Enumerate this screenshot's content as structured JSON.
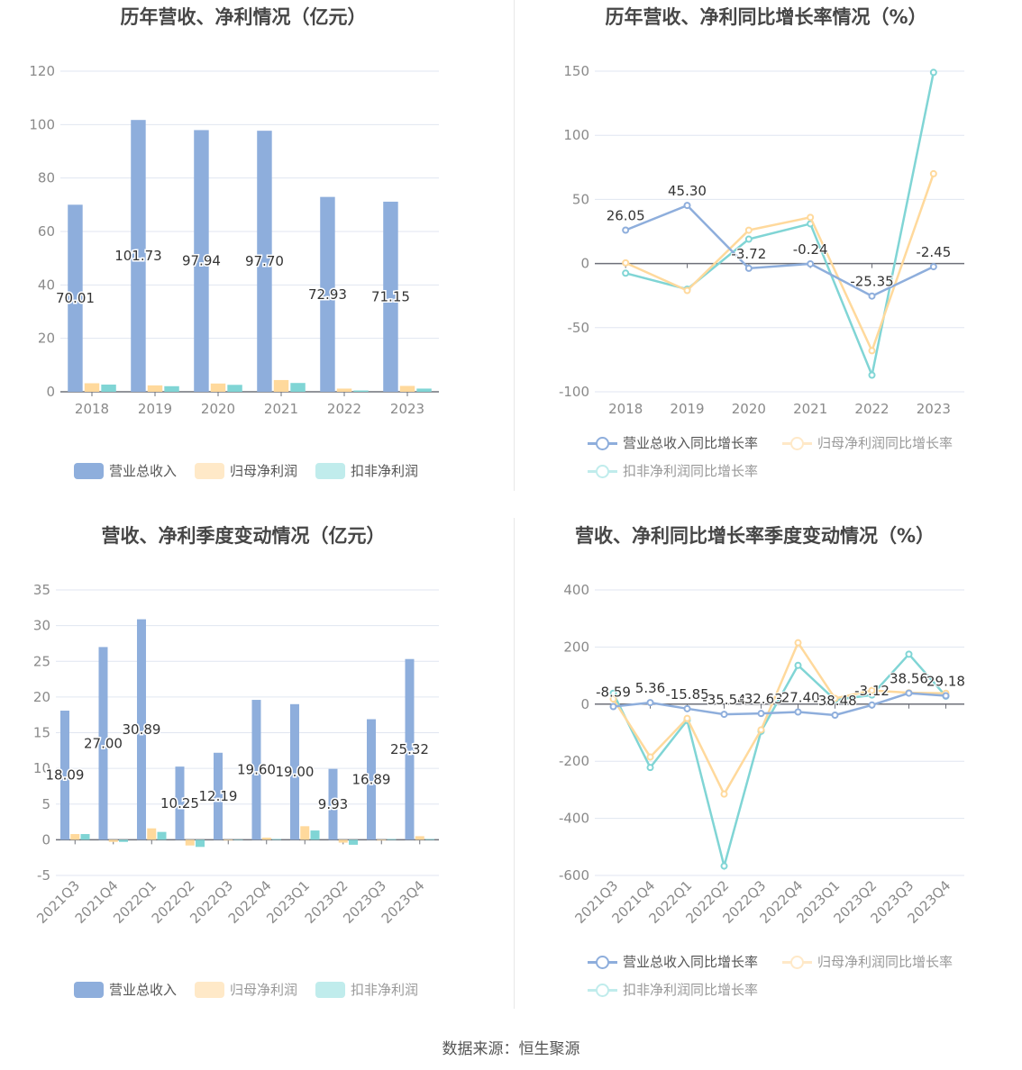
{
  "colors": {
    "revenue": "#8eaedc",
    "parent_profit": "#ffd99c",
    "deducted_profit": "#80d5d5",
    "axis": "#6e7079",
    "grid": "#e0e6f1"
  },
  "footer": {
    "source": "数据来源：恒生聚源"
  },
  "chart_data": [
    {
      "type": "bar",
      "title": "历年营收、净利情况（亿元）",
      "categories": [
        "2018",
        "2019",
        "2020",
        "2021",
        "2022",
        "2023"
      ],
      "ylim": [
        0,
        120
      ],
      "yticks": [
        "0",
        "20",
        "40",
        "60",
        "80",
        "100",
        "120"
      ],
      "grid": true,
      "legend": "bottom",
      "series": [
        {
          "name": "营业总收入",
          "color": "#8eaedc",
          "values": [
            70.01,
            101.73,
            97.94,
            97.7,
            72.93,
            71.15
          ],
          "labels": [
            "70.01",
            "101.73",
            "97.94",
            "97.70",
            "72.93",
            "71.15"
          ]
        },
        {
          "name": "归母净利润",
          "color": "#ffd99c",
          "values": [
            3.2,
            2.4,
            3.1,
            4.4,
            1.2,
            2.2
          ]
        },
        {
          "name": "扣非净利润",
          "color": "#80d5d5",
          "values": [
            2.7,
            2.1,
            2.6,
            3.3,
            0.5,
            1.2
          ]
        }
      ]
    },
    {
      "type": "line",
      "title": "历年营收、净利同比增长率情况（%）",
      "categories": [
        "2018",
        "2019",
        "2020",
        "2021",
        "2022",
        "2023"
      ],
      "ylim": [
        -100,
        150
      ],
      "yticks": [
        "-100",
        "-50",
        "0",
        "50",
        "100",
        "150"
      ],
      "grid": true,
      "legend": "bottom",
      "series": [
        {
          "name": "营业总收入同比增长率",
          "color": "#8eaedc",
          "values": [
            26.05,
            45.3,
            -3.72,
            -0.24,
            -25.35,
            -2.45
          ],
          "labels": [
            "26.05",
            "45.30",
            "-3.72",
            "-0.24",
            "-25.35",
            "-2.45"
          ]
        },
        {
          "name": "归母净利润同比增长率",
          "color": "#ffd99c",
          "values": [
            0.5,
            -21,
            26,
            36,
            -68,
            70
          ]
        },
        {
          "name": "扣非净利润同比增长率",
          "color": "#80d5d5",
          "values": [
            -7.5,
            -20,
            19,
            31,
            -87,
            149
          ]
        }
      ]
    },
    {
      "type": "bar",
      "title": "营收、净利季度变动情况（亿元）",
      "categories": [
        "2021Q3",
        "2021Q4",
        "2022Q1",
        "2022Q2",
        "2022Q3",
        "2022Q4",
        "2023Q1",
        "2023Q2",
        "2023Q3",
        "2023Q4"
      ],
      "ylim": [
        -5,
        35
      ],
      "yticks": [
        "-5",
        "0",
        "5",
        "10",
        "15",
        "20",
        "25",
        "30",
        "35"
      ],
      "grid": true,
      "legend": "bottom",
      "series": [
        {
          "name": "营业总收入",
          "color": "#8eaedc",
          "values": [
            18.09,
            27.0,
            30.89,
            10.25,
            12.19,
            19.6,
            19.0,
            9.93,
            16.89,
            25.32
          ],
          "labels": [
            "18.09",
            "27.00",
            "30.89",
            "10.25",
            "12.19",
            "19.60",
            "19.00",
            "9.93",
            "16.89",
            "25.32"
          ]
        },
        {
          "name": "归母净利润",
          "color": "#ffd99c",
          "values": [
            0.8,
            -0.3,
            1.6,
            -0.8,
            -0.1,
            0.3,
            1.9,
            -0.4,
            -0.1,
            0.5
          ]
        },
        {
          "name": "扣非净利润",
          "color": "#80d5d5",
          "values": [
            0.8,
            -0.3,
            1.1,
            -1.0,
            0.05,
            0.1,
            1.3,
            -0.7,
            0.1,
            0.1
          ]
        }
      ]
    },
    {
      "type": "line",
      "title": "营收、净利同比增长率季度变动情况（%）",
      "categories": [
        "2021Q3",
        "2021Q4",
        "2022Q1",
        "2022Q2",
        "2022Q3",
        "2022Q4",
        "2023Q1",
        "2023Q2",
        "2023Q3",
        "2023Q4"
      ],
      "ylim": [
        -600,
        400
      ],
      "yticks": [
        "-600",
        "-400",
        "-200",
        "0",
        "200",
        "400"
      ],
      "grid": true,
      "legend": "bottom",
      "series": [
        {
          "name": "营业总收入同比增长率",
          "color": "#8eaedc",
          "values": [
            -8.59,
            5.36,
            -15.85,
            -35.54,
            -32.63,
            -27.4,
            -38.48,
            -3.12,
            38.56,
            29.18
          ],
          "labels": [
            "-8.59",
            "5.36",
            "-15.85",
            "-35.54",
            "-32.63",
            "-27.40",
            "-38.48",
            "-3.12",
            "38.56",
            "29.18"
          ]
        },
        {
          "name": "归母净利润同比增长率",
          "color": "#ffd99c",
          "values": [
            18,
            -185,
            -50,
            -315,
            -90,
            215,
            20,
            48,
            40,
            38
          ]
        },
        {
          "name": "扣非净利润同比增长率",
          "color": "#80d5d5",
          "values": [
            38,
            -222,
            -57,
            -567,
            -95,
            136,
            15,
            32,
            175,
            28
          ]
        }
      ]
    }
  ]
}
